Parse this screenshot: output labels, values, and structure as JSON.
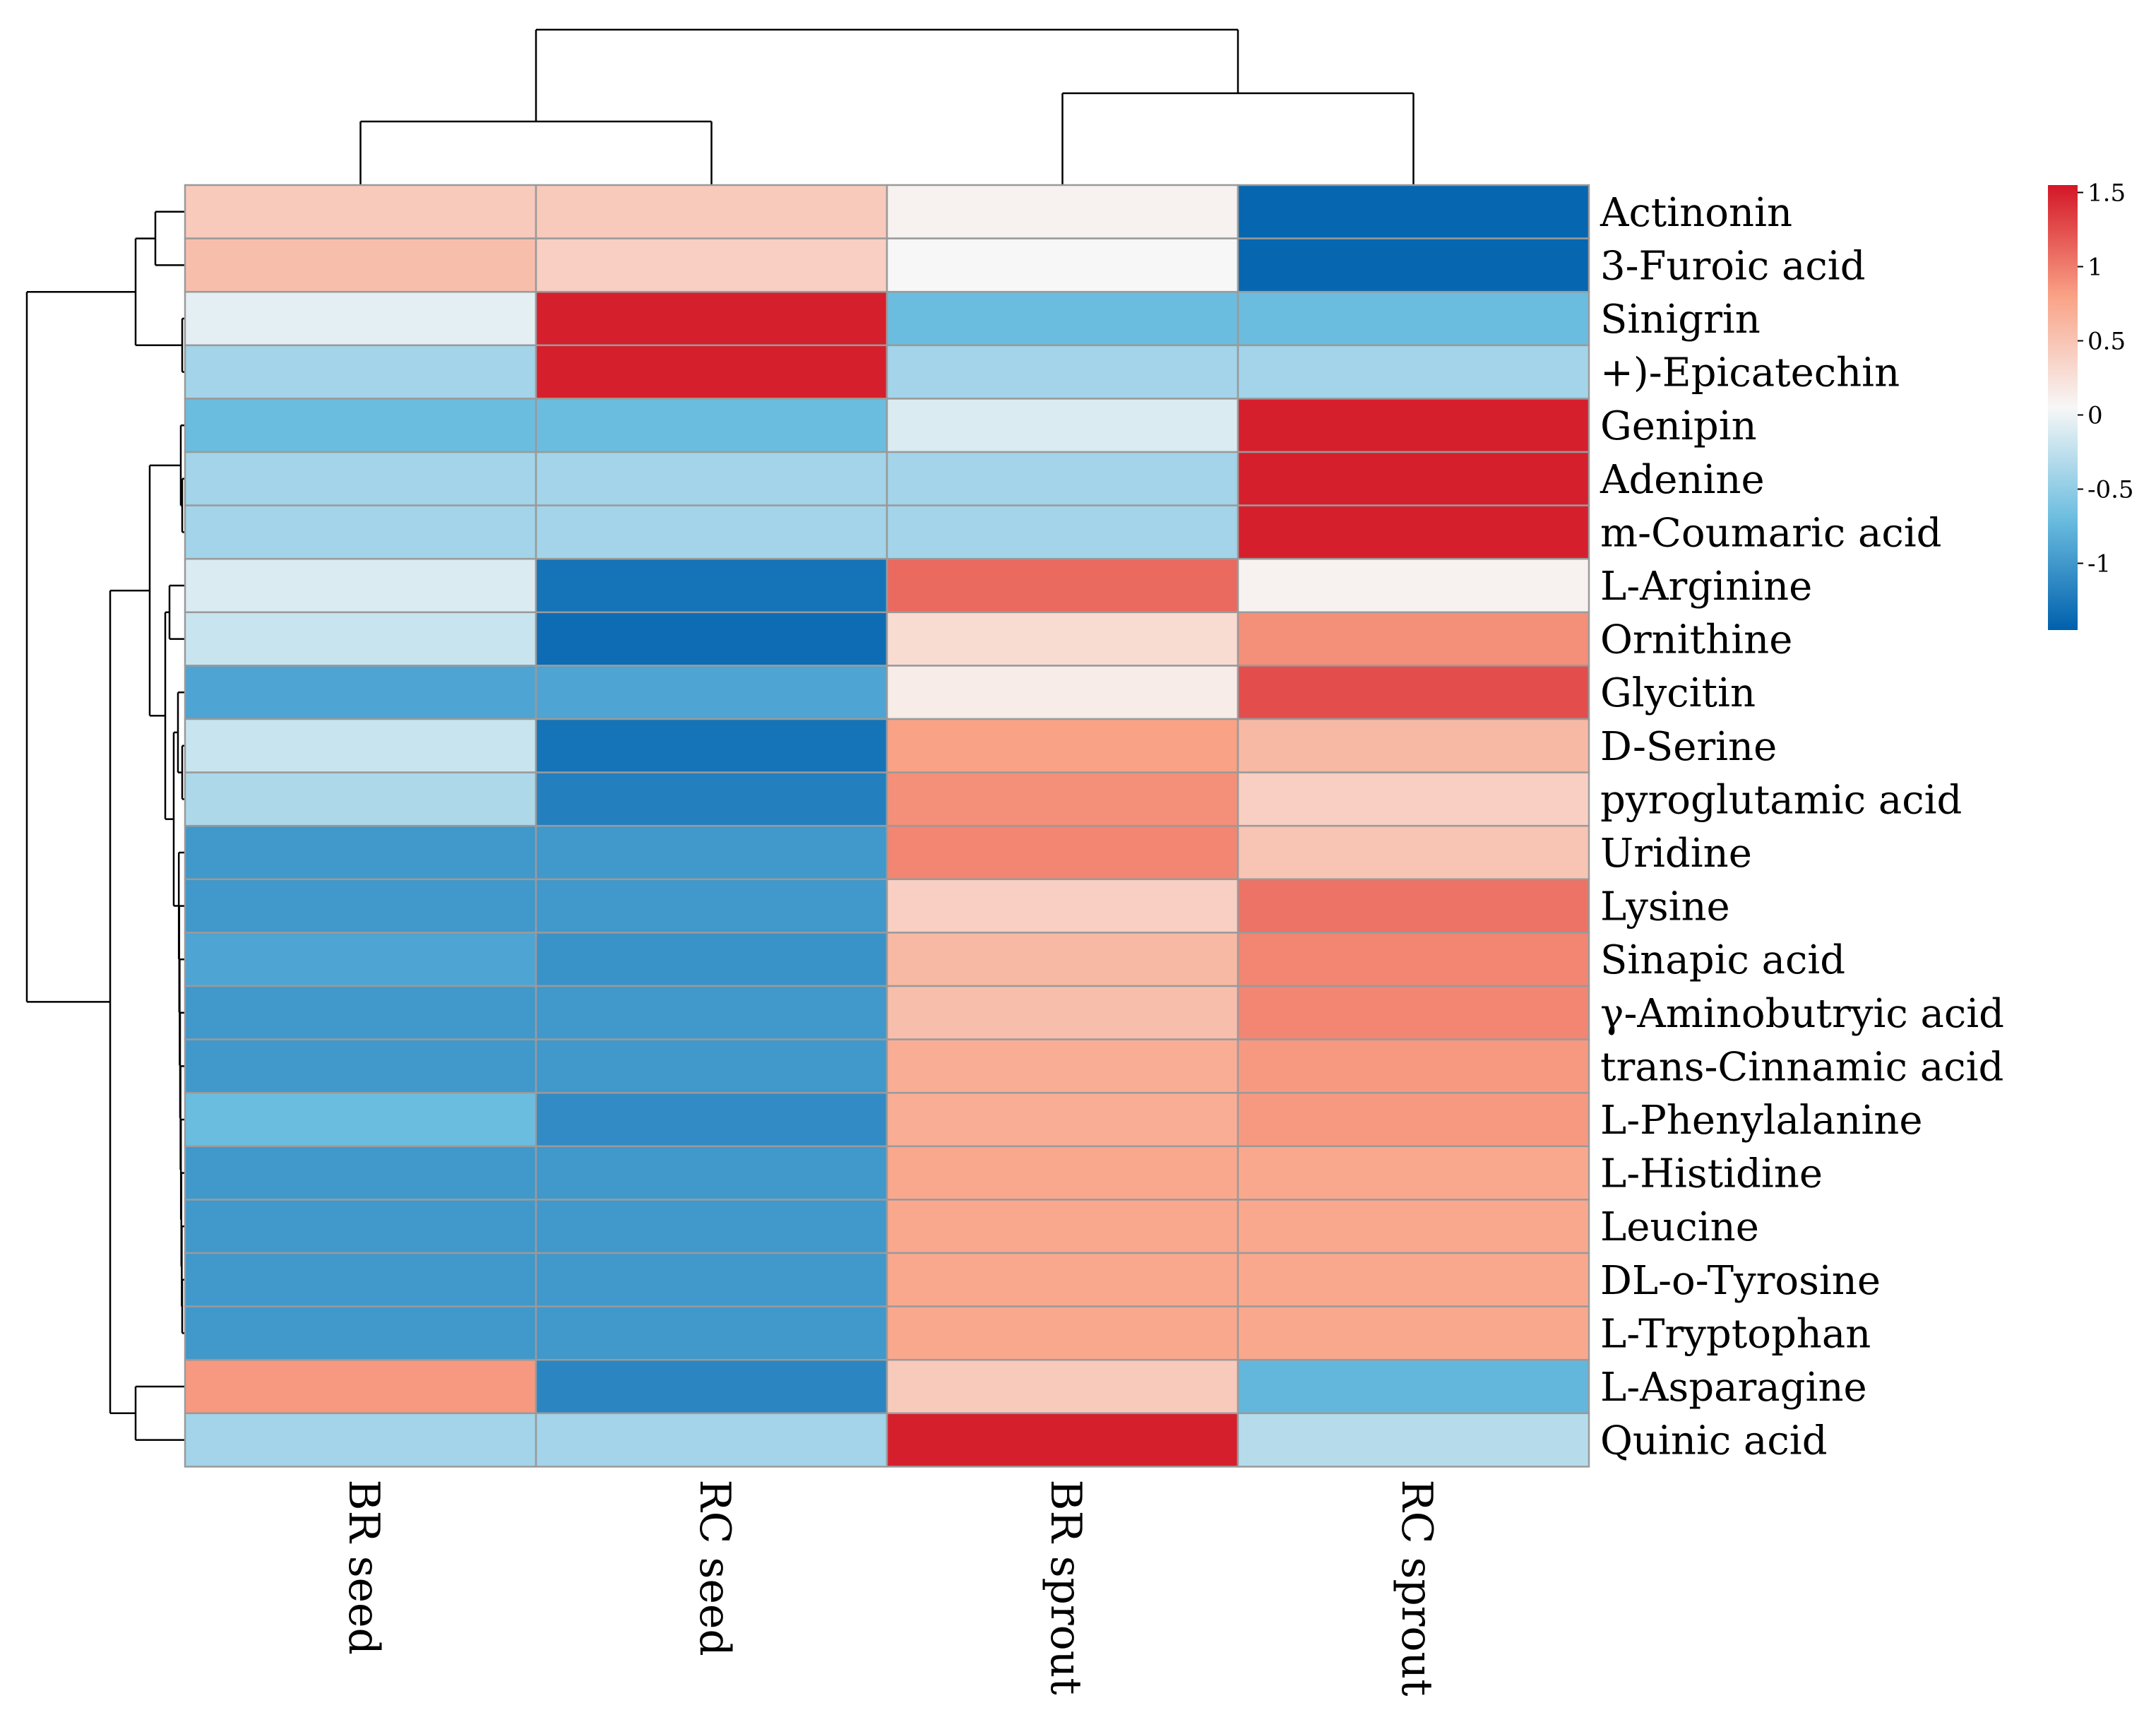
{
  "chart_data": {
    "type": "heatmap",
    "title": "",
    "columns": [
      "BR seed",
      "RC seed",
      "BR sprout",
      "RC sprout"
    ],
    "rows": [
      "Actinonin",
      "3-Furoic acid",
      "Sinigrin",
      "+)-Epicatechin",
      "Genipin",
      "Adenine",
      "m-Coumaric acid",
      "L-Arginine",
      "Ornithine",
      "Glycitin",
      "D-Serine",
      "pyroglutamic acid",
      "Uridine",
      "Lysine",
      "Sinapic acid",
      "γ-Aminobutryic acid",
      "trans-Cinnamic acid",
      "L-Phenylalanine",
      "L-Histidine",
      "Leucine",
      "DL-o-Tyrosine",
      "L-Tryptophan",
      "L-Asparagine",
      "Quinic acid"
    ],
    "values": [
      [
        0.45,
        0.45,
        0.1,
        -1.4
      ],
      [
        0.55,
        0.4,
        0.05,
        -1.4
      ],
      [
        -0.05,
        1.5,
        -0.7,
        -0.7
      ],
      [
        -0.4,
        1.5,
        -0.4,
        -0.4
      ],
      [
        -0.7,
        -0.7,
        -0.1,
        1.5
      ],
      [
        -0.4,
        -0.4,
        -0.4,
        1.5
      ],
      [
        -0.4,
        -0.4,
        -0.4,
        1.5
      ],
      [
        -0.1,
        -1.3,
        1.1,
        0.1
      ],
      [
        -0.2,
        -1.35,
        0.3,
        0.9
      ],
      [
        -0.9,
        -0.9,
        0.15,
        1.25
      ],
      [
        -0.2,
        -1.3,
        0.8,
        0.6
      ],
      [
        -0.35,
        -1.2,
        0.9,
        0.4
      ],
      [
        -1.0,
        -1.0,
        0.95,
        0.5
      ],
      [
        -1.0,
        -1.0,
        0.4,
        1.05
      ],
      [
        -0.9,
        -1.05,
        0.6,
        0.95
      ],
      [
        -1.0,
        -1.0,
        0.55,
        0.95
      ],
      [
        -1.0,
        -1.0,
        0.7,
        0.85
      ],
      [
        -0.7,
        -1.1,
        0.7,
        0.85
      ],
      [
        -1.0,
        -1.0,
        0.75,
        0.75
      ],
      [
        -1.0,
        -1.0,
        0.75,
        0.75
      ],
      [
        -1.0,
        -1.0,
        0.75,
        0.75
      ],
      [
        -1.0,
        -1.0,
        0.75,
        0.75
      ],
      [
        0.85,
        -1.15,
        0.45,
        -0.75
      ],
      [
        -0.4,
        -0.4,
        1.5,
        -0.3
      ]
    ],
    "colorscale": {
      "min": -1.45,
      "max": 1.55,
      "stops": [
        "#0060ad",
        "#6bbddf",
        "#f7f7f7",
        "#f9a286",
        "#d41627"
      ],
      "ticks": [
        1.5,
        1,
        0.5,
        0,
        -0.5,
        -1
      ],
      "tick_labels": [
        "1.5",
        "1",
        "0.5",
        "0",
        "-0.5",
        "-1"
      ]
    },
    "legend_position": "top-right",
    "column_dendrogram": true,
    "row_dendrogram": true
  }
}
